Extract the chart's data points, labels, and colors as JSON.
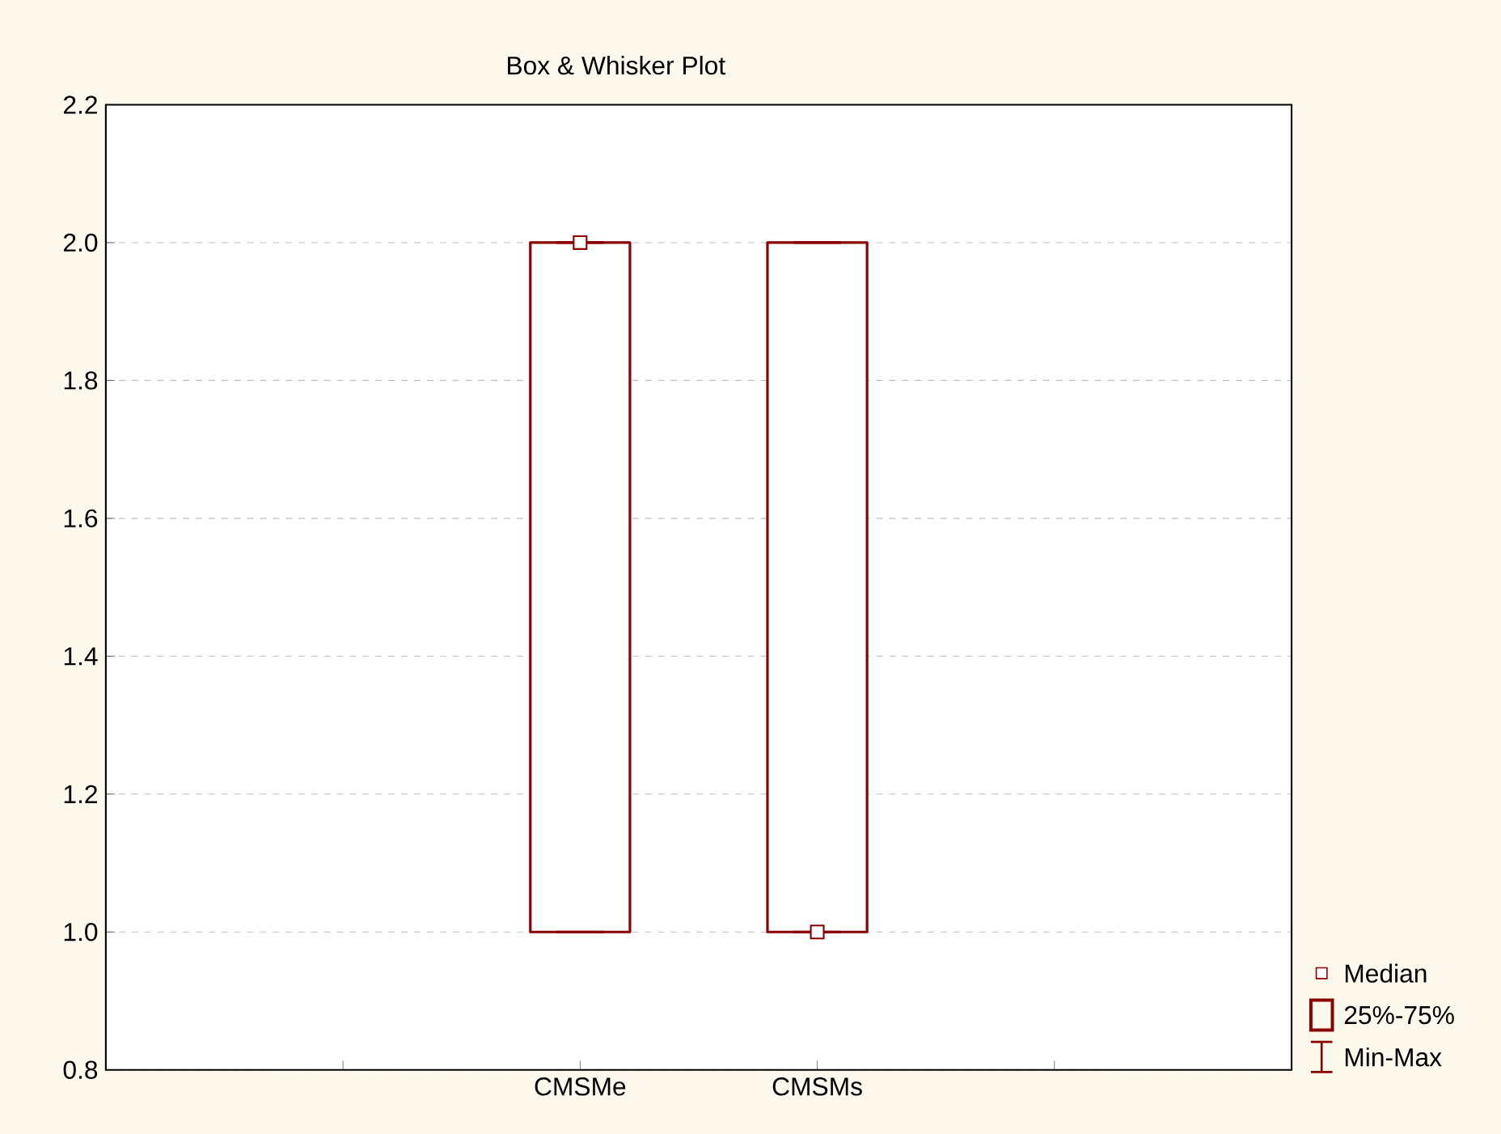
{
  "chart_data": {
    "type": "box",
    "title": "Box & Whisker Plot",
    "categories": [
      "CMSMe",
      "CMSMs"
    ],
    "boxes": [
      {
        "low": 1,
        "q1": 1,
        "median": 2,
        "q3": 2,
        "high": 2
      },
      {
        "low": 1,
        "q1": 1,
        "median": 1,
        "q3": 2,
        "high": 2
      }
    ],
    "color": "#8b0000",
    "ylim": [
      0.8,
      2.2
    ],
    "yticks": [
      {
        "value": 0.8,
        "label": "0.8"
      },
      {
        "value": 1.0,
        "label": "1.0"
      },
      {
        "value": 1.2,
        "label": "1.2"
      },
      {
        "value": 1.4,
        "label": "1.4"
      },
      {
        "value": 1.6,
        "label": "1.6"
      },
      {
        "value": 1.8,
        "label": "1.8"
      },
      {
        "value": 2.0,
        "label": "2.0"
      },
      {
        "value": 2.2,
        "label": "2.2"
      }
    ],
    "grid": "y",
    "marker": "square",
    "annotations": [
      "Median",
      "25%-75%",
      "Min-Max"
    ]
  }
}
